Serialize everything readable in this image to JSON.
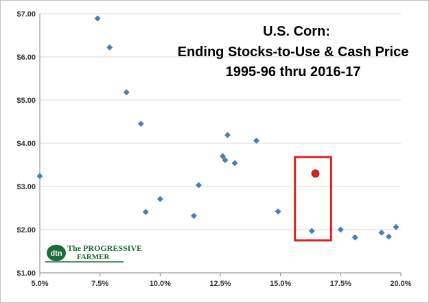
{
  "chart_data": {
    "type": "scatter",
    "title": [
      "U.S. Corn:",
      "Ending Stocks-to-Use & Cash Price",
      "1995-96 thru 2016-17"
    ],
    "xlabel": "",
    "ylabel": "",
    "xlim": [
      0.05,
      0.2
    ],
    "ylim": [
      1.0,
      7.0
    ],
    "x_ticks": [
      0.05,
      0.075,
      0.1,
      0.125,
      0.15,
      0.175,
      0.2
    ],
    "x_tick_labels": [
      "5.0%",
      "7.5%",
      "10.0%",
      "12.5%",
      "15.0%",
      "17.5%",
      "20.0%"
    ],
    "y_ticks": [
      1,
      2,
      3,
      4,
      5,
      6,
      7
    ],
    "y_tick_labels": [
      "$1.00",
      "$2.00",
      "$3.00",
      "$4.00",
      "$5.00",
      "$6.00",
      "$7.00"
    ],
    "grid": "horizontal",
    "series": [
      {
        "marker": "diamond",
        "color": "#4a7ebb",
        "points": [
          [
            0.05,
            3.24
          ],
          [
            0.074,
            6.89
          ],
          [
            0.079,
            6.22
          ],
          [
            0.086,
            5.18
          ],
          [
            0.092,
            4.45
          ],
          [
            0.094,
            2.41
          ],
          [
            0.1,
            2.71
          ],
          [
            0.114,
            2.32
          ],
          [
            0.116,
            3.03
          ],
          [
            0.126,
            3.7
          ],
          [
            0.127,
            3.61
          ],
          [
            0.128,
            4.19
          ],
          [
            0.131,
            3.54
          ],
          [
            0.14,
            4.06
          ],
          [
            0.149,
            2.42
          ],
          [
            0.163,
            1.97
          ],
          [
            0.175,
            2.0
          ],
          [
            0.181,
            1.82
          ],
          [
            0.192,
            1.93
          ],
          [
            0.195,
            1.84
          ],
          [
            0.198,
            2.06
          ]
        ]
      },
      {
        "marker": "circle",
        "color": "#e02020",
        "points": [
          [
            0.1645,
            3.3
          ]
        ]
      }
    ],
    "highlight_box": {
      "color": "#e02020",
      "x_range": [
        0.156,
        0.171
      ],
      "y_range": [
        1.75,
        3.68
      ]
    }
  },
  "logo": {
    "name": "dtn-progressive-farmer-logo",
    "text_main": "dtn",
    "text_line1": "The PROGRESSIVE",
    "text_line2": "FARMER"
  }
}
